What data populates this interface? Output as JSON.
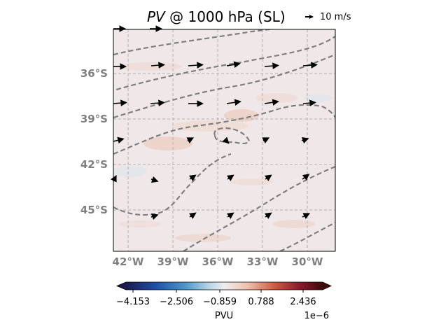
{
  "title": {
    "variable": "PV",
    "rest": " @ 1000 hPa (SL)"
  },
  "reference_vector": {
    "label": "10 m/s"
  },
  "map": {
    "lat_labels": [
      "36°S",
      "39°S",
      "42°S",
      "45°S"
    ],
    "lon_labels": [
      "42°W",
      "39°W",
      "36°W",
      "33°W",
      "30°W"
    ],
    "gridlines": true,
    "contour_style": "dashed gray"
  },
  "colorbar": {
    "ticks": [
      "−4.153",
      "−2.506",
      "−0.859",
      "0.788",
      "2.436"
    ],
    "label": "PVU",
    "exponent": "1e−6",
    "colormap": [
      "#1a1a4e",
      "#2166ac",
      "#67a9cf",
      "#d1e5f0",
      "#f0eeee",
      "#f4c6b0",
      "#d6604d",
      "#8b1a2b",
      "#3a0a0a"
    ],
    "extend": "both"
  },
  "colors": {
    "background_field": "#f0e8e8",
    "contour": "#7f7f7f",
    "gridline": "#b0b0b0",
    "axis_label": "#7f7f7f"
  }
}
